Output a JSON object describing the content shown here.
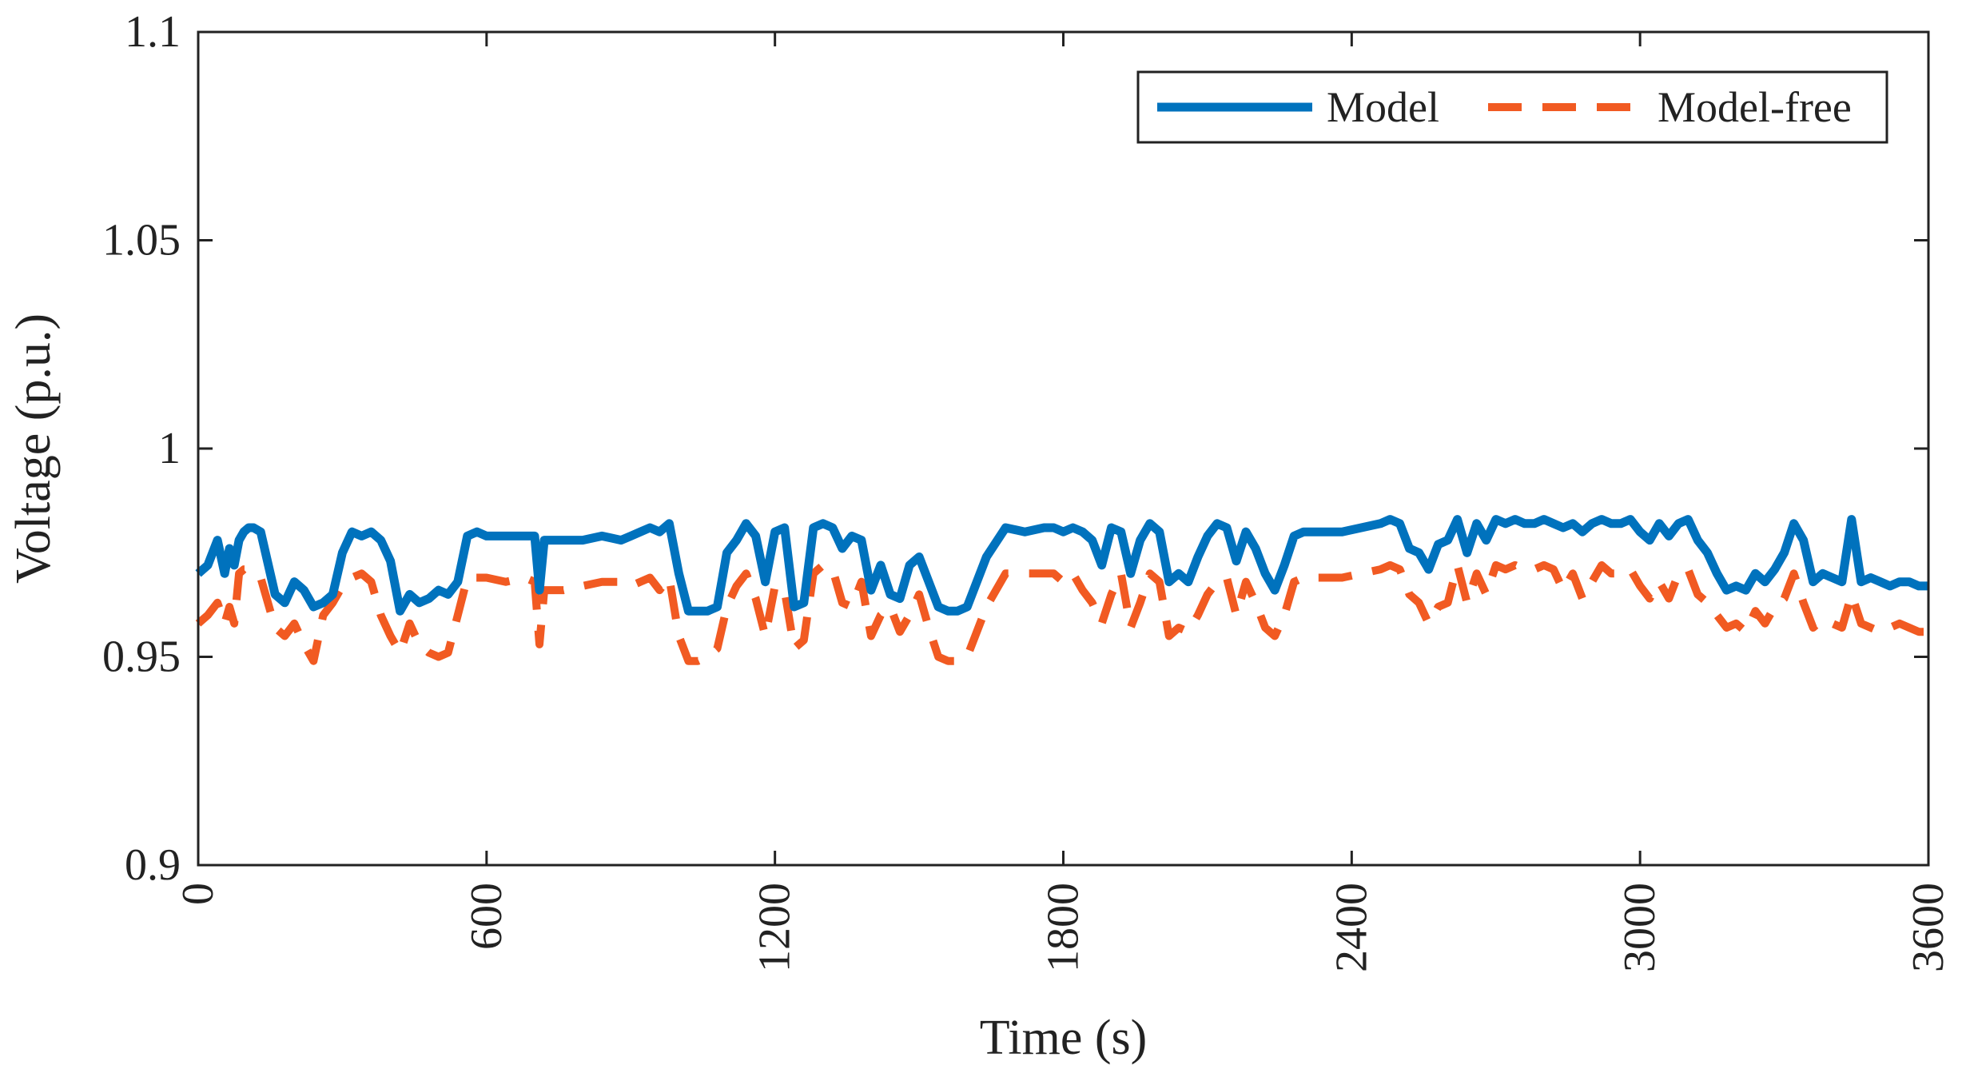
{
  "chart_data": {
    "type": "line",
    "title": "",
    "xlabel": "Time (s)",
    "ylabel": "Voltage (p.u.)",
    "xlim": [
      0,
      3600
    ],
    "ylim": [
      0.9,
      1.1
    ],
    "xticks": [
      0,
      600,
      1200,
      1800,
      2400,
      3000,
      3600
    ],
    "xtick_labels": [
      "0",
      "600",
      "1200",
      "1800",
      "2400",
      "3000",
      "3600"
    ],
    "yticks": [
      0.9,
      0.95,
      1.0,
      1.05,
      1.1
    ],
    "ytick_labels": [
      "0.9",
      "0.95",
      "1",
      "1.05",
      "1.1"
    ],
    "grid": false,
    "legend_position": "top-right",
    "series": [
      {
        "name": "Model",
        "color": "#0072BD",
        "style": "solid",
        "x": [
          0,
          20,
          40,
          55,
          65,
          75,
          85,
          95,
          105,
          115,
          130,
          160,
          180,
          200,
          220,
          240,
          260,
          280,
          300,
          320,
          340,
          360,
          380,
          400,
          420,
          440,
          460,
          480,
          500,
          520,
          540,
          560,
          580,
          600,
          640,
          680,
          700,
          710,
          720,
          760,
          800,
          840,
          880,
          900,
          920,
          940,
          960,
          980,
          1000,
          1020,
          1040,
          1060,
          1080,
          1100,
          1120,
          1140,
          1160,
          1180,
          1200,
          1220,
          1240,
          1260,
          1280,
          1300,
          1320,
          1340,
          1360,
          1380,
          1400,
          1420,
          1440,
          1460,
          1480,
          1500,
          1520,
          1540,
          1560,
          1580,
          1600,
          1640,
          1680,
          1720,
          1760,
          1780,
          1800,
          1820,
          1840,
          1860,
          1880,
          1900,
          1920,
          1940,
          1960,
          1980,
          2000,
          2020,
          2040,
          2060,
          2080,
          2100,
          2120,
          2140,
          2160,
          2180,
          2200,
          2220,
          2240,
          2260,
          2280,
          2300,
          2340,
          2380,
          2420,
          2460,
          2480,
          2500,
          2520,
          2540,
          2560,
          2580,
          2600,
          2620,
          2640,
          2660,
          2680,
          2700,
          2720,
          2740,
          2760,
          2780,
          2800,
          2820,
          2840,
          2860,
          2880,
          2900,
          2920,
          2940,
          2960,
          2980,
          3000,
          3020,
          3040,
          3060,
          3080,
          3100,
          3120,
          3140,
          3160,
          3180,
          3200,
          3220,
          3240,
          3260,
          3280,
          3300,
          3320,
          3340,
          3360,
          3380,
          3400,
          3420,
          3440,
          3460,
          3480,
          3500,
          3520,
          3540,
          3560,
          3580,
          3600
        ],
        "values": [
          0.97,
          0.972,
          0.978,
          0.97,
          0.976,
          0.972,
          0.978,
          0.98,
          0.981,
          0.981,
          0.98,
          0.965,
          0.963,
          0.968,
          0.966,
          0.962,
          0.963,
          0.965,
          0.975,
          0.98,
          0.979,
          0.98,
          0.978,
          0.973,
          0.961,
          0.965,
          0.963,
          0.964,
          0.966,
          0.965,
          0.968,
          0.979,
          0.98,
          0.979,
          0.979,
          0.979,
          0.979,
          0.966,
          0.978,
          0.978,
          0.978,
          0.979,
          0.978,
          0.979,
          0.98,
          0.981,
          0.98,
          0.982,
          0.97,
          0.961,
          0.961,
          0.961,
          0.962,
          0.975,
          0.978,
          0.982,
          0.979,
          0.968,
          0.98,
          0.981,
          0.962,
          0.963,
          0.981,
          0.982,
          0.981,
          0.976,
          0.979,
          0.978,
          0.966,
          0.972,
          0.965,
          0.964,
          0.972,
          0.974,
          0.968,
          0.962,
          0.961,
          0.961,
          0.962,
          0.974,
          0.981,
          0.98,
          0.981,
          0.981,
          0.98,
          0.981,
          0.98,
          0.978,
          0.972,
          0.981,
          0.98,
          0.97,
          0.978,
          0.982,
          0.98,
          0.968,
          0.97,
          0.968,
          0.974,
          0.979,
          0.982,
          0.981,
          0.973,
          0.98,
          0.976,
          0.97,
          0.966,
          0.972,
          0.979,
          0.98,
          0.98,
          0.98,
          0.981,
          0.982,
          0.983,
          0.982,
          0.976,
          0.975,
          0.971,
          0.977,
          0.978,
          0.983,
          0.975,
          0.982,
          0.978,
          0.983,
          0.982,
          0.983,
          0.982,
          0.982,
          0.983,
          0.982,
          0.981,
          0.982,
          0.98,
          0.982,
          0.983,
          0.982,
          0.982,
          0.983,
          0.98,
          0.978,
          0.982,
          0.979,
          0.982,
          0.983,
          0.978,
          0.975,
          0.97,
          0.966,
          0.967,
          0.966,
          0.97,
          0.968,
          0.971,
          0.975,
          0.982,
          0.978,
          0.968,
          0.97,
          0.969,
          0.968,
          0.983,
          0.968,
          0.969,
          0.968,
          0.967,
          0.968,
          0.968,
          0.967,
          0.967
        ]
      },
      {
        "name": "Model-free",
        "color": "#F15A22",
        "style": "dashed",
        "x": [
          0,
          20,
          40,
          55,
          65,
          75,
          85,
          95,
          105,
          115,
          130,
          160,
          180,
          200,
          220,
          240,
          260,
          280,
          300,
          320,
          340,
          360,
          380,
          400,
          420,
          440,
          460,
          480,
          500,
          520,
          540,
          560,
          580,
          600,
          640,
          680,
          700,
          710,
          720,
          760,
          800,
          840,
          880,
          900,
          920,
          940,
          960,
          980,
          1000,
          1020,
          1040,
          1060,
          1080,
          1100,
          1120,
          1140,
          1160,
          1180,
          1200,
          1220,
          1240,
          1260,
          1280,
          1300,
          1320,
          1340,
          1360,
          1380,
          1400,
          1420,
          1440,
          1460,
          1480,
          1500,
          1520,
          1540,
          1560,
          1580,
          1600,
          1640,
          1680,
          1720,
          1760,
          1780,
          1800,
          1820,
          1840,
          1860,
          1880,
          1900,
          1920,
          1940,
          1960,
          1980,
          2000,
          2020,
          2040,
          2060,
          2080,
          2100,
          2120,
          2140,
          2160,
          2180,
          2200,
          2220,
          2240,
          2260,
          2280,
          2300,
          2340,
          2380,
          2420,
          2460,
          2480,
          2500,
          2520,
          2540,
          2560,
          2580,
          2600,
          2620,
          2640,
          2660,
          2680,
          2700,
          2720,
          2740,
          2760,
          2780,
          2800,
          2820,
          2840,
          2860,
          2880,
          2900,
          2920,
          2940,
          2960,
          2980,
          3000,
          3020,
          3040,
          3060,
          3080,
          3100,
          3120,
          3140,
          3160,
          3180,
          3200,
          3220,
          3240,
          3260,
          3280,
          3300,
          3320,
          3340,
          3360,
          3380,
          3400,
          3420,
          3440,
          3460,
          3480,
          3500,
          3520,
          3540,
          3560,
          3580,
          3600
        ],
        "values": [
          0.958,
          0.96,
          0.963,
          0.958,
          0.962,
          0.958,
          0.97,
          0.971,
          0.971,
          0.97,
          0.969,
          0.957,
          0.955,
          0.958,
          0.953,
          0.949,
          0.96,
          0.963,
          0.967,
          0.969,
          0.97,
          0.968,
          0.96,
          0.955,
          0.951,
          0.958,
          0.953,
          0.951,
          0.95,
          0.951,
          0.96,
          0.969,
          0.969,
          0.969,
          0.968,
          0.969,
          0.968,
          0.953,
          0.966,
          0.966,
          0.967,
          0.968,
          0.968,
          0.967,
          0.968,
          0.969,
          0.966,
          0.969,
          0.955,
          0.949,
          0.949,
          0.95,
          0.952,
          0.962,
          0.967,
          0.97,
          0.964,
          0.955,
          0.967,
          0.966,
          0.952,
          0.954,
          0.97,
          0.972,
          0.971,
          0.963,
          0.962,
          0.968,
          0.955,
          0.96,
          0.962,
          0.956,
          0.96,
          0.965,
          0.957,
          0.95,
          0.949,
          0.949,
          0.95,
          0.962,
          0.97,
          0.97,
          0.97,
          0.97,
          0.968,
          0.97,
          0.966,
          0.963,
          0.958,
          0.965,
          0.97,
          0.957,
          0.963,
          0.97,
          0.968,
          0.955,
          0.957,
          0.956,
          0.96,
          0.965,
          0.968,
          0.969,
          0.96,
          0.968,
          0.963,
          0.957,
          0.955,
          0.96,
          0.968,
          0.969,
          0.969,
          0.969,
          0.97,
          0.971,
          0.972,
          0.971,
          0.965,
          0.963,
          0.958,
          0.962,
          0.963,
          0.972,
          0.963,
          0.97,
          0.965,
          0.972,
          0.971,
          0.972,
          0.971,
          0.971,
          0.972,
          0.971,
          0.966,
          0.97,
          0.964,
          0.968,
          0.972,
          0.97,
          0.97,
          0.971,
          0.967,
          0.964,
          0.968,
          0.964,
          0.97,
          0.971,
          0.965,
          0.963,
          0.96,
          0.957,
          0.958,
          0.956,
          0.961,
          0.958,
          0.962,
          0.964,
          0.97,
          0.963,
          0.957,
          0.959,
          0.958,
          0.957,
          0.965,
          0.958,
          0.957,
          0.956,
          0.957,
          0.958,
          0.957,
          0.956,
          0.956
        ]
      }
    ]
  }
}
